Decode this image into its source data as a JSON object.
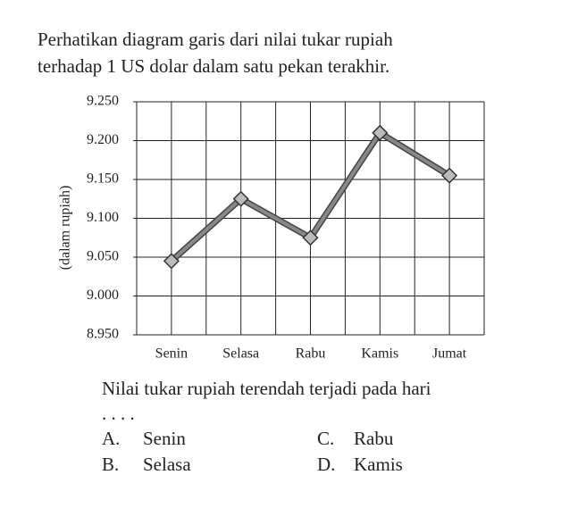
{
  "question_lines": [
    "Perhatikan diagram garis dari nilai tukar rupiah",
    "terhadap 1 US dolar dalam satu pekan terakhir."
  ],
  "chart_data": {
    "type": "line",
    "y_label": "(dalam rupiah)",
    "categories": [
      "Senin",
      "Selasa",
      "Rabu",
      "Kamis",
      "Jumat"
    ],
    "values": [
      9045,
      9125,
      9075,
      9210,
      9155
    ],
    "color": "#888888",
    "ylim": [
      8950,
      9250
    ],
    "yticks": [
      {
        "value": 8950,
        "label": "8.950"
      },
      {
        "value": 9000,
        "label": "9.000"
      },
      {
        "value": 9050,
        "label": "9.050"
      },
      {
        "value": 9100,
        "label": "9.100"
      },
      {
        "value": 9150,
        "label": "9.150"
      },
      {
        "value": 9200,
        "label": "9.200"
      },
      {
        "value": 9250,
        "label": "9.250"
      }
    ],
    "grid": true
  },
  "prompt": "Nilai tukar rupiah terendah terjadi pada hari",
  "blank": ". . . .",
  "options": [
    {
      "letter": "A.",
      "text": "Senin"
    },
    {
      "letter": "B.",
      "text": "Selasa"
    },
    {
      "letter": "C.",
      "text": "Rabu"
    },
    {
      "letter": "D.",
      "text": "Kamis"
    }
  ]
}
